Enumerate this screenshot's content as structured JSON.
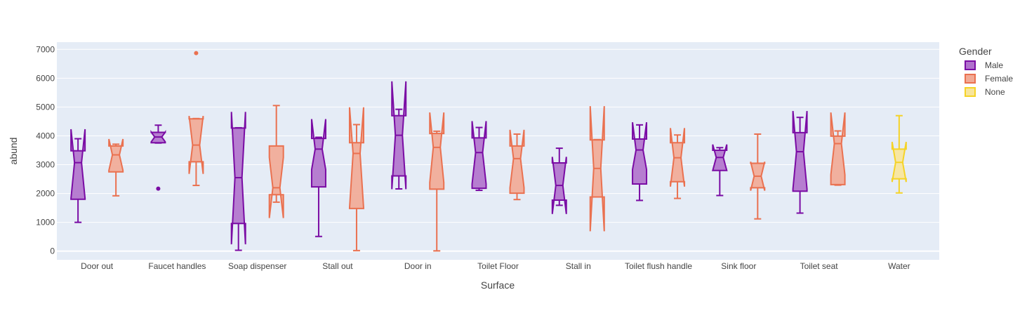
{
  "chart_data": {
    "type": "box",
    "notched": true,
    "xlabel": "Surface",
    "ylabel": "abund",
    "ylim": [
      -300,
      7250
    ],
    "yticks": [
      0,
      1000,
      2000,
      3000,
      4000,
      5000,
      6000,
      7000
    ],
    "grid": true,
    "legend": {
      "title": "Gender",
      "placement": "right"
    },
    "categories": [
      "Door out",
      "Faucet handles",
      "Soap dispenser",
      "Stall out",
      "Door in",
      "Toilet Floor",
      "Stall in",
      "Toilet flush handle",
      "Sink floor",
      "Toilet seat",
      "Water"
    ],
    "series": [
      {
        "name": "Male",
        "color": "#7a0ca4",
        "fill": "#b072cc",
        "boxes": [
          {
            "category": "Door out",
            "min": 1000,
            "q1": 1800,
            "median": 3070,
            "q3": 3480,
            "max": 3900,
            "notch_low": 1830,
            "notch_high": 4230,
            "outliers": []
          },
          {
            "category": "Faucet handles",
            "min": 3750,
            "q1": 3760,
            "median": 3960,
            "q3": 4120,
            "max": 4370,
            "notch_low": 3790,
            "notch_high": 4130,
            "outliers": [
              2170
            ]
          },
          {
            "category": "Soap dispenser",
            "min": 30,
            "q1": 960,
            "median": 2550,
            "q3": 4270,
            "max": 4280,
            "notch_low": 240,
            "notch_high": 4830,
            "outliers": []
          },
          {
            "category": "Stall out",
            "min": 510,
            "q1": 2230,
            "median": 3540,
            "q3": 3910,
            "max": 3950,
            "notch_low": 2830,
            "notch_high": 4580,
            "outliers": []
          },
          {
            "category": "Door in",
            "min": 2160,
            "q1": 2610,
            "median": 4020,
            "q3": 4700,
            "max": 4920,
            "notch_low": 2150,
            "notch_high": 5890,
            "outliers": []
          },
          {
            "category": "Toilet Floor",
            "min": 2110,
            "q1": 2180,
            "median": 3420,
            "q3": 3930,
            "max": 4290,
            "notch_low": 2330,
            "notch_high": 4510,
            "outliers": []
          },
          {
            "category": "Stall in",
            "min": 1590,
            "q1": 1770,
            "median": 2280,
            "q3": 3060,
            "max": 3570,
            "notch_low": 1290,
            "notch_high": 3270,
            "outliers": []
          },
          {
            "category": "Toilet flush handle",
            "min": 1760,
            "q1": 2330,
            "median": 3510,
            "q3": 3890,
            "max": 4380,
            "notch_low": 2830,
            "notch_high": 4470,
            "outliers": []
          },
          {
            "category": "Sink floor",
            "min": 1930,
            "q1": 2800,
            "median": 3250,
            "q3": 3500,
            "max": 3590,
            "notch_low": 2800,
            "notch_high": 3700,
            "outliers": []
          },
          {
            "category": "Toilet seat",
            "min": 1320,
            "q1": 2080,
            "median": 3450,
            "q3": 4110,
            "max": 4640,
            "notch_low": 2160,
            "notch_high": 4860,
            "outliers": []
          }
        ]
      },
      {
        "name": "Female",
        "color": "#ea7150",
        "fill": "#f2aa95",
        "boxes": [
          {
            "category": "Door out",
            "min": 1920,
            "q1": 2750,
            "median": 3340,
            "q3": 3650,
            "max": 3710,
            "notch_low": 2800,
            "notch_high": 3890,
            "outliers": []
          },
          {
            "category": "Faucet handles",
            "min": 2280,
            "q1": 3100,
            "median": 3680,
            "q3": 4590,
            "max": 4600,
            "notch_low": 2680,
            "notch_high": 4690,
            "outliers": [
              6870
            ]
          },
          {
            "category": "Soap dispenser",
            "min": 1700,
            "q1": 1960,
            "median": 2200,
            "q3": 3650,
            "max": 5050,
            "notch_low": 1150,
            "notch_high": 3250,
            "outliers": []
          },
          {
            "category": "Stall out",
            "min": 20,
            "q1": 1480,
            "median": 3390,
            "q3": 3760,
            "max": 4390,
            "notch_low": 1500,
            "notch_high": 4990,
            "outliers": []
          },
          {
            "category": "Door in",
            "min": 10,
            "q1": 2150,
            "median": 3600,
            "q3": 4080,
            "max": 4160,
            "notch_low": 2380,
            "notch_high": 4810,
            "outliers": []
          },
          {
            "category": "Toilet Floor",
            "min": 1790,
            "q1": 2010,
            "median": 3210,
            "q3": 3650,
            "max": 4060,
            "notch_low": 2200,
            "notch_high": 4210,
            "outliers": []
          },
          {
            "category": "Stall in",
            "min": 1880,
            "q1": 1880,
            "median": 2870,
            "q3": 3860,
            "max": 3870,
            "notch_low": 690,
            "notch_high": 5030,
            "outliers": []
          },
          {
            "category": "Toilet flush handle",
            "min": 1830,
            "q1": 2410,
            "median": 3240,
            "q3": 3760,
            "max": 4030,
            "notch_low": 2240,
            "notch_high": 4270,
            "outliers": []
          },
          {
            "category": "Sink floor",
            "min": 1120,
            "q1": 2200,
            "median": 2600,
            "q3": 3050,
            "max": 4060,
            "notch_low": 2100,
            "notch_high": 3100,
            "outliers": []
          },
          {
            "category": "Toilet seat",
            "min": 2290,
            "q1": 2310,
            "median": 3730,
            "q3": 3990,
            "max": 4170,
            "notch_low": 2650,
            "notch_high": 4810,
            "outliers": []
          }
        ]
      },
      {
        "name": "None",
        "color": "#f5d327",
        "fill": "#f8e59a",
        "boxes": [
          {
            "category": "Water",
            "min": 2020,
            "q1": 2510,
            "median": 3080,
            "q3": 3540,
            "max": 4700,
            "notch_low": 2400,
            "notch_high": 3790,
            "outliers": []
          }
        ]
      }
    ]
  }
}
